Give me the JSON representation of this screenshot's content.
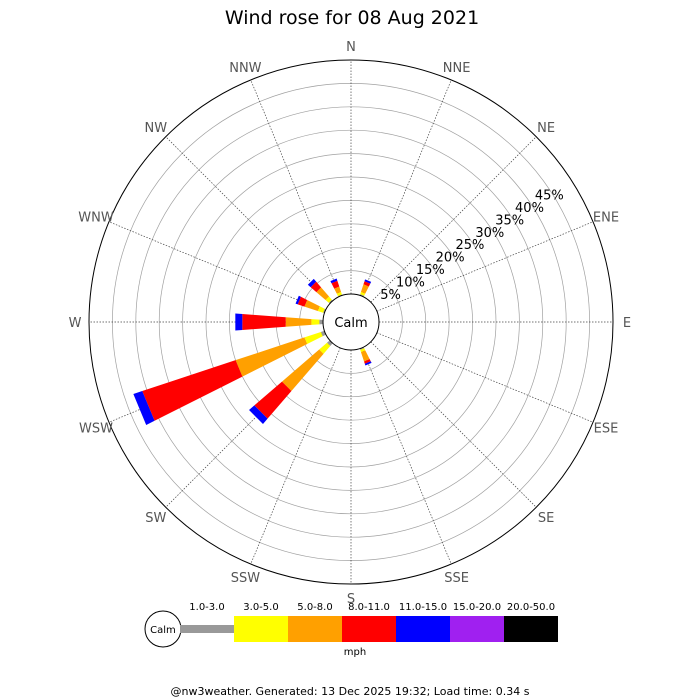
{
  "chart_data": {
    "type": "wind-rose",
    "title": "Wind rose for 08 Aug 2021",
    "directions": [
      "N",
      "NNE",
      "NE",
      "ENE",
      "E",
      "ESE",
      "SE",
      "SSE",
      "S",
      "SSW",
      "SW",
      "WSW",
      "W",
      "WNW",
      "NW",
      "NNW"
    ],
    "rings_percent": [
      5,
      10,
      15,
      20,
      25,
      30,
      35,
      40,
      45
    ],
    "ring_labels": [
      "5%",
      "10%",
      "15%",
      "20%",
      "25%",
      "30%",
      "35%",
      "40%",
      "45%"
    ],
    "rmax_percent": 50,
    "calm_label": "Calm",
    "speed_bins": [
      "1.0-3.0",
      "3.0-5.0",
      "5.0-8.0",
      "8.0-11.0",
      "11.0-15.0",
      "15.0-20.0",
      "20.0-50.0"
    ],
    "bin_colors": [
      "#999999",
      "#ffff00",
      "#ffa000",
      "#ff0000",
      "#0000ff",
      "#a020f0",
      "#000000"
    ],
    "units": "mph",
    "series_cumulative_percent": {
      "N": [
        0,
        0,
        0,
        0,
        0,
        0,
        0
      ],
      "NNE": [
        0.3,
        0.8,
        2.5,
        3.2,
        3.6,
        3.6,
        3.6
      ],
      "NE": [
        0,
        0,
        0,
        0,
        0,
        0,
        0
      ],
      "ENE": [
        0,
        0,
        0,
        0,
        0,
        0,
        0
      ],
      "E": [
        0,
        0,
        0,
        0,
        0,
        0,
        0
      ],
      "ESE": [
        0,
        0,
        0,
        0,
        0,
        0,
        0
      ],
      "SE": [
        0,
        0,
        0,
        0,
        0,
        0,
        0
      ],
      "SSE": [
        0.3,
        0.8,
        2.9,
        3.4,
        3.8,
        3.8,
        3.8
      ],
      "S": [
        0,
        0,
        0,
        0,
        0,
        0,
        0
      ],
      "SSW": [
        0,
        0,
        0,
        0,
        0,
        0,
        0
      ],
      "SW": [
        0.8,
        3.0,
        13.5,
        21.3,
        22.8,
        22.8,
        22.8
      ],
      "WSW": [
        0.8,
        4.5,
        20.0,
        41.0,
        43.0,
        43.0,
        43.0
      ],
      "W": [
        0.8,
        2.5,
        8.0,
        17.3,
        18.8,
        18.8,
        18.8
      ],
      "WNW": [
        0.3,
        1.5,
        4.5,
        6.0,
        6.5,
        6.5,
        6.5
      ],
      "NW": [
        0.3,
        1.2,
        3.8,
        5.4,
        6.2,
        6.2,
        6.2
      ],
      "NNW": [
        0.2,
        0.8,
        2.0,
        3.3,
        3.8,
        3.8,
        3.8
      ]
    }
  },
  "footer": "@nw3weather. Generated: 13 Dec 2025 19:32; Load time: 0.34 s"
}
